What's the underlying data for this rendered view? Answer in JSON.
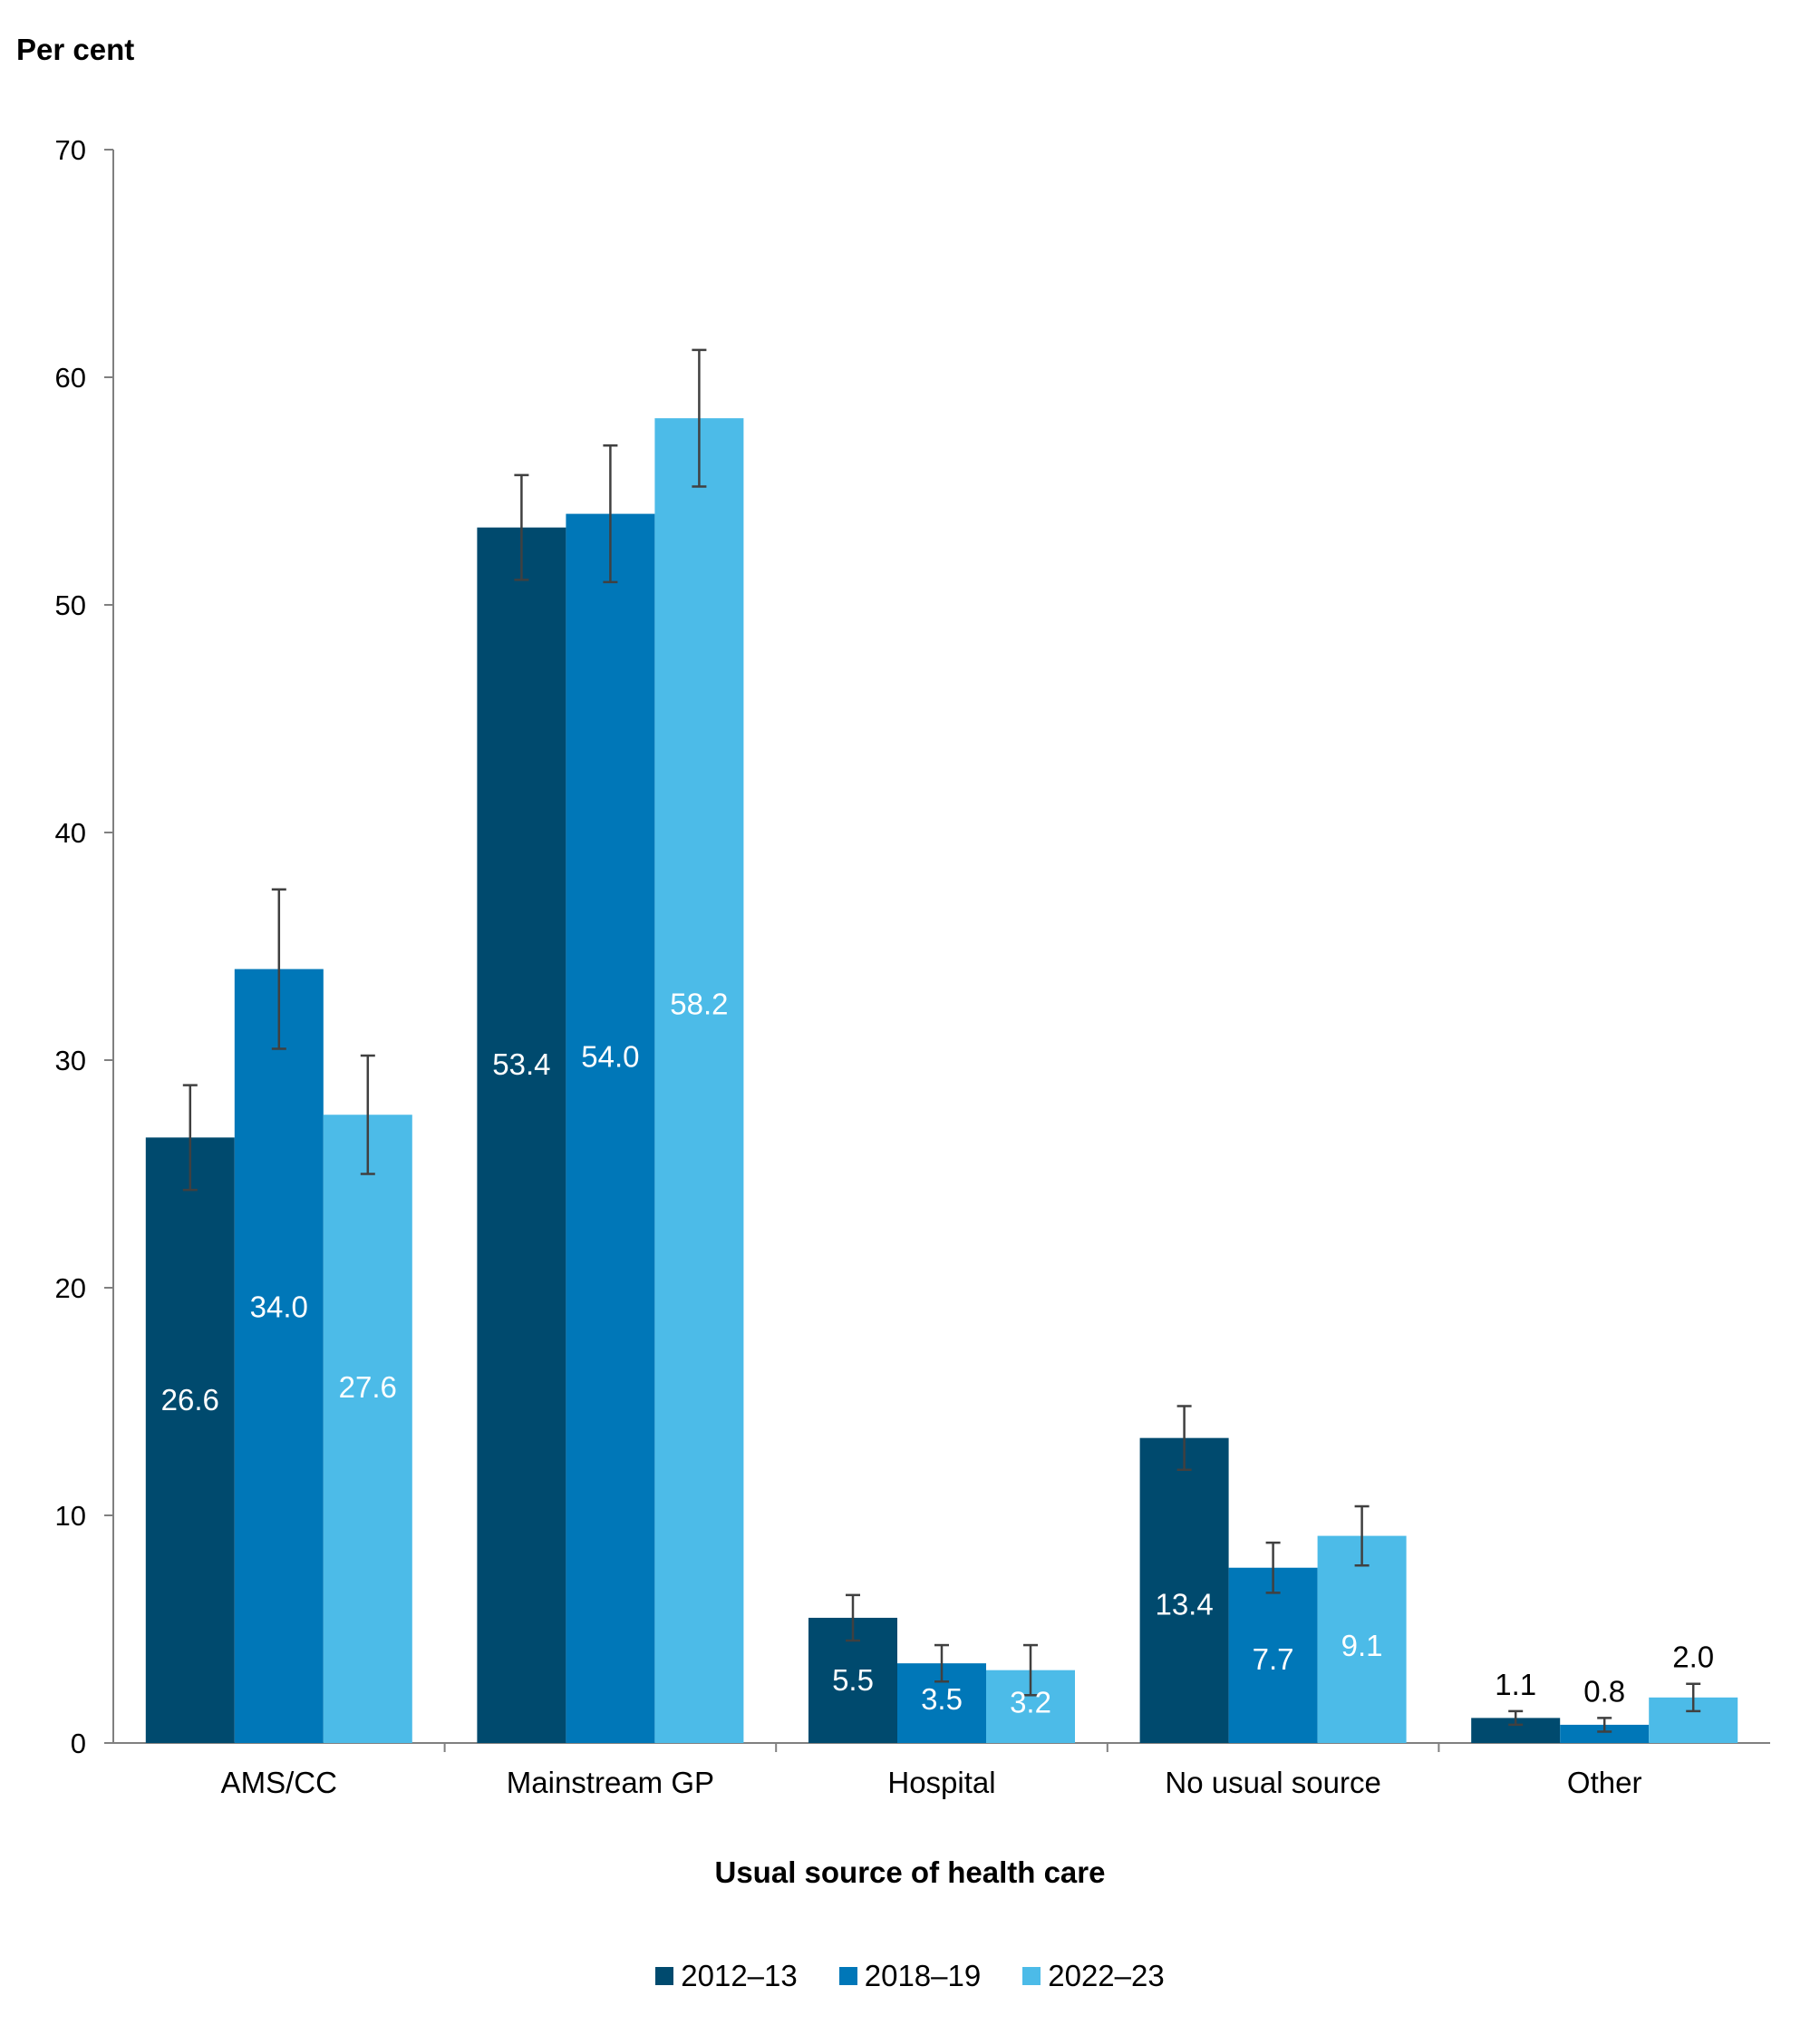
{
  "chart_data": {
    "type": "bar",
    "ylabel": "Per cent",
    "xlabel": "Usual source of health care",
    "ylim": [
      0,
      70
    ],
    "yticks": [
      0,
      10,
      20,
      30,
      40,
      50,
      60,
      70
    ],
    "categories": [
      "AMS/CC",
      "Mainstream GP",
      "Hospital",
      "No usual source",
      "Other"
    ],
    "series": [
      {
        "name": "2012–13",
        "color": "#004a6e",
        "values": [
          26.6,
          53.4,
          5.5,
          13.4,
          1.1
        ],
        "labels": [
          "26.6",
          "53.4",
          "5.5",
          "13.4",
          "1.1"
        ],
        "ci_low": [
          24.3,
          51.1,
          4.5,
          12.0,
          0.8
        ],
        "ci_high": [
          28.9,
          55.7,
          6.5,
          14.8,
          1.4
        ]
      },
      {
        "name": "2018–19",
        "color": "#0077b8",
        "values": [
          34.0,
          54.0,
          3.5,
          7.7,
          0.8
        ],
        "labels": [
          "34.0",
          "54.0",
          "3.5",
          "7.7",
          "0.8"
        ],
        "ci_low": [
          30.5,
          51.0,
          2.7,
          6.6,
          0.5
        ],
        "ci_high": [
          37.5,
          57.0,
          4.3,
          8.8,
          1.1
        ]
      },
      {
        "name": "2022–23",
        "color": "#4cbbe8",
        "values": [
          27.6,
          58.2,
          3.2,
          9.1,
          2.0
        ],
        "labels": [
          "27.6",
          "58.2",
          "3.2",
          "9.1",
          "2.0"
        ],
        "ci_low": [
          25.0,
          55.2,
          2.1,
          7.8,
          1.4
        ],
        "ci_high": [
          30.2,
          61.2,
          4.3,
          10.4,
          2.6
        ]
      }
    ],
    "legend_position": "bottom",
    "grid": false
  }
}
